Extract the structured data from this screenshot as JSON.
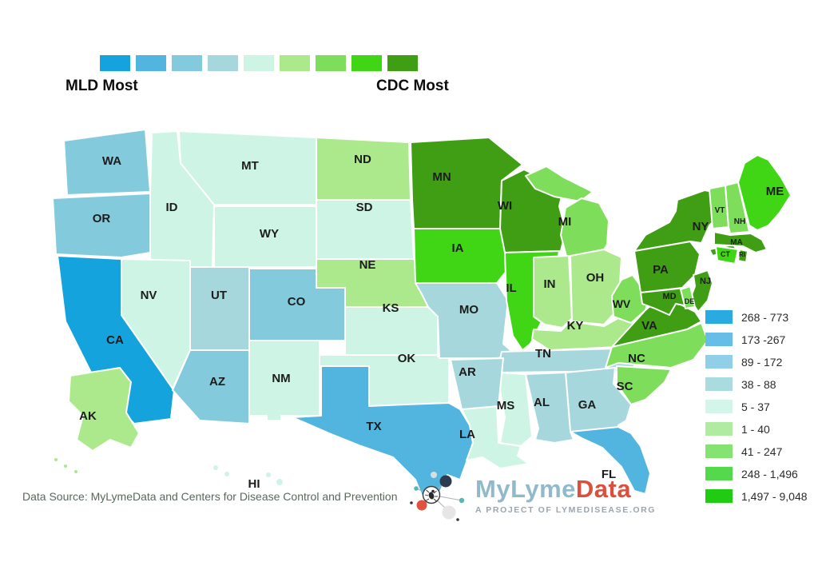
{
  "scale": {
    "left_label": "MLD Most",
    "right_label": "CDC Most",
    "swatches": [
      "#14A3DD",
      "#52B5E0",
      "#84CADD",
      "#A6D7DC",
      "#CDF4E4",
      "#ABE98C",
      "#7EDD5A",
      "#40D616",
      "#3F9E13"
    ]
  },
  "legend": {
    "items": [
      {
        "range": "268 - 773",
        "color": "#29ABE2"
      },
      {
        "range": "173 -267",
        "color": "#66BDE7"
      },
      {
        "range": "89 - 172",
        "color": "#90CFE7"
      },
      {
        "range": "38 - 88",
        "color": "#A9DBDF"
      },
      {
        "range": "5 - 37",
        "color": "#D4F5EA"
      },
      {
        "range": "1 - 40",
        "color": "#AFEBA1"
      },
      {
        "range": "41 - 247",
        "color": "#84E371"
      },
      {
        "range": "248 - 1,496",
        "color": "#55D94C"
      },
      {
        "range": "1,497 - 9,048",
        "color": "#1FCC11"
      }
    ]
  },
  "map": {
    "states": [
      {
        "abbr": "WA",
        "category": 3
      },
      {
        "abbr": "OR",
        "category": 3
      },
      {
        "abbr": "CA",
        "category": 1
      },
      {
        "abbr": "ID",
        "category": 5
      },
      {
        "abbr": "MT",
        "category": 5
      },
      {
        "abbr": "WY",
        "category": 5
      },
      {
        "abbr": "NV",
        "category": 5
      },
      {
        "abbr": "UT",
        "category": 4
      },
      {
        "abbr": "CO",
        "category": 3
      },
      {
        "abbr": "AZ",
        "category": 3
      },
      {
        "abbr": "NM",
        "category": 5
      },
      {
        "abbr": "ND",
        "category": 6
      },
      {
        "abbr": "SD",
        "category": 5
      },
      {
        "abbr": "NE",
        "category": 6
      },
      {
        "abbr": "KS",
        "category": 5
      },
      {
        "abbr": "OK",
        "category": 5
      },
      {
        "abbr": "TX",
        "category": 2
      },
      {
        "abbr": "MN",
        "category": 9
      },
      {
        "abbr": "IA",
        "category": 8
      },
      {
        "abbr": "MO",
        "category": 4
      },
      {
        "abbr": "WI",
        "category": 9
      },
      {
        "abbr": "IL",
        "category": 8
      },
      {
        "abbr": "MI",
        "category": 7
      },
      {
        "abbr": "IN",
        "category": 6
      },
      {
        "abbr": "OH",
        "category": 6
      },
      {
        "abbr": "KY",
        "category": 6
      },
      {
        "abbr": "TN",
        "category": 4
      },
      {
        "abbr": "WV",
        "category": 7
      },
      {
        "abbr": "VA",
        "category": 9
      },
      {
        "abbr": "NC",
        "category": 7
      },
      {
        "abbr": "SC",
        "category": 7
      },
      {
        "abbr": "GA",
        "category": 4
      },
      {
        "abbr": "AL",
        "category": 4
      },
      {
        "abbr": "MS",
        "category": 5
      },
      {
        "abbr": "LA",
        "category": 5
      },
      {
        "abbr": "AR",
        "category": 4
      },
      {
        "abbr": "FL",
        "category": 2
      },
      {
        "abbr": "PA",
        "category": 9
      },
      {
        "abbr": "NY",
        "category": 9
      },
      {
        "abbr": "NJ",
        "category": 9
      },
      {
        "abbr": "MD",
        "category": 9
      },
      {
        "abbr": "DE",
        "category": 7
      },
      {
        "abbr": "VT",
        "category": 7
      },
      {
        "abbr": "NH",
        "category": 7
      },
      {
        "abbr": "MA",
        "category": 9
      },
      {
        "abbr": "CT",
        "category": 8
      },
      {
        "abbr": "RI",
        "category": 9
      },
      {
        "abbr": "ME",
        "category": 8
      },
      {
        "abbr": "AK",
        "category": 6
      },
      {
        "abbr": "HI",
        "category": 5
      }
    ]
  },
  "footer": {
    "source_text": "Data Source: MyLymeData and Centers for Disease Control and Prevention"
  },
  "logo": {
    "word1": "MyLyme",
    "word2": "Data",
    "tagline": "A PROJECT OF LYMEDISEASE.ORG",
    "colors": {
      "word1": "#90BAC9",
      "word2": "#D9503F",
      "tagline": "#9AA5AD"
    }
  }
}
